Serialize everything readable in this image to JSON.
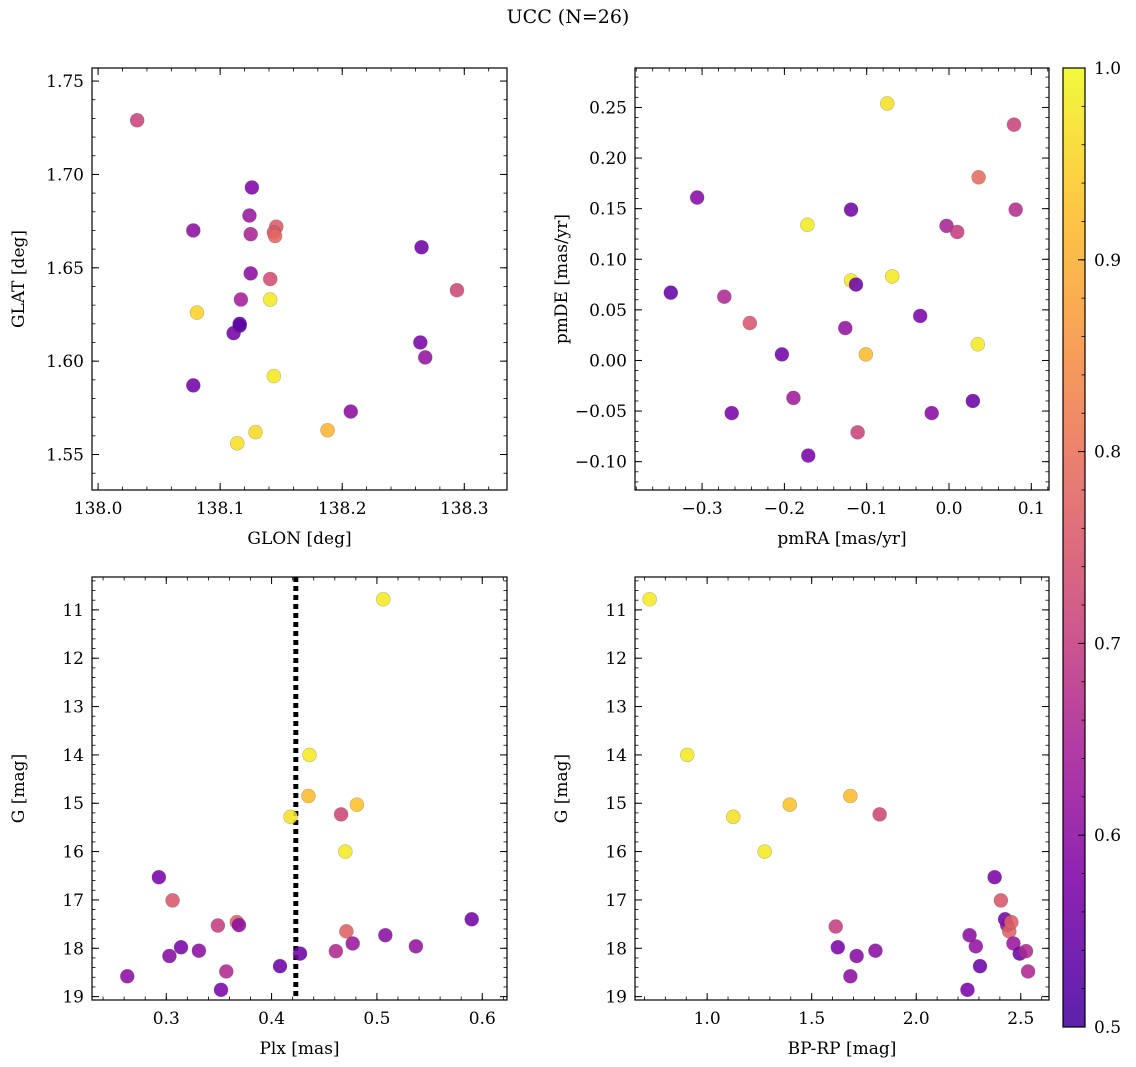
{
  "suptitle": "UCC (N=26)",
  "colorbar": {
    "colormap": "plasma",
    "range": [
      0.5,
      1.0
    ],
    "ticks": [
      "0.5",
      "0.6",
      "0.7",
      "0.8",
      "0.9",
      "1.0"
    ]
  },
  "chart_data": [
    {
      "type": "scatter",
      "title": "",
      "xlabel": "GLON [deg]",
      "ylabel": "GLAT [deg]",
      "xlim": [
        137.995,
        138.335
      ],
      "ylim": [
        1.531,
        1.757
      ],
      "xticks": [
        "138.0",
        "138.1",
        "138.2",
        "138.3"
      ],
      "yticks": [
        "1.55",
        "1.60",
        "1.65",
        "1.70",
        "1.75"
      ],
      "points": [
        {
          "x": 138.032,
          "y": 1.729,
          "c": 0.71
        },
        {
          "x": 138.078,
          "y": 1.67,
          "c": 0.6
        },
        {
          "x": 138.126,
          "y": 1.693,
          "c": 0.58
        },
        {
          "x": 138.124,
          "y": 1.678,
          "c": 0.62
        },
        {
          "x": 138.125,
          "y": 1.668,
          "c": 0.65
        },
        {
          "x": 138.146,
          "y": 1.672,
          "c": 0.76
        },
        {
          "x": 138.144,
          "y": 1.669,
          "c": 0.75
        },
        {
          "x": 138.145,
          "y": 1.667,
          "c": 0.78
        },
        {
          "x": 138.125,
          "y": 1.647,
          "c": 0.6
        },
        {
          "x": 138.141,
          "y": 1.644,
          "c": 0.73
        },
        {
          "x": 138.117,
          "y": 1.633,
          "c": 0.64
        },
        {
          "x": 138.141,
          "y": 1.633,
          "c": 0.98
        },
        {
          "x": 138.081,
          "y": 1.626,
          "c": 0.95
        },
        {
          "x": 138.116,
          "y": 1.619,
          "c": 0.52
        },
        {
          "x": 138.111,
          "y": 1.615,
          "c": 0.56
        },
        {
          "x": 138.078,
          "y": 1.587,
          "c": 0.56
        },
        {
          "x": 138.144,
          "y": 1.592,
          "c": 0.98
        },
        {
          "x": 138.129,
          "y": 1.562,
          "c": 0.96
        },
        {
          "x": 138.114,
          "y": 1.556,
          "c": 0.97
        },
        {
          "x": 138.188,
          "y": 1.563,
          "c": 0.91
        },
        {
          "x": 138.207,
          "y": 1.573,
          "c": 0.6
        },
        {
          "x": 138.265,
          "y": 1.661,
          "c": 0.55
        },
        {
          "x": 138.264,
          "y": 1.61,
          "c": 0.57
        },
        {
          "x": 138.268,
          "y": 1.602,
          "c": 0.61
        },
        {
          "x": 138.294,
          "y": 1.638,
          "c": 0.72
        },
        {
          "x": 138.116,
          "y": 1.62,
          "c": 0.53
        }
      ]
    },
    {
      "type": "scatter",
      "title": "",
      "xlabel": "pmRA [mas/yr]",
      "ylabel": "pmDE [mas/yr]",
      "xlim": [
        -0.3815,
        0.1215
      ],
      "ylim": [
        -0.128,
        0.289
      ],
      "xticks": [
        "−0.3",
        "−0.2",
        "−0.1",
        "0.0",
        "0.1"
      ],
      "yticks": [
        "−0.10",
        "−0.05",
        "0.00",
        "0.05",
        "0.10",
        "0.15",
        "0.20",
        "0.25"
      ],
      "points": [
        {
          "x": -0.075,
          "y": 0.254,
          "c": 0.97
        },
        {
          "x": 0.079,
          "y": 0.233,
          "c": 0.71
        },
        {
          "x": 0.036,
          "y": 0.181,
          "c": 0.79
        },
        {
          "x": -0.306,
          "y": 0.161,
          "c": 0.59
        },
        {
          "x": -0.119,
          "y": 0.149,
          "c": 0.56
        },
        {
          "x": 0.081,
          "y": 0.149,
          "c": 0.67
        },
        {
          "x": -0.172,
          "y": 0.134,
          "c": 0.98
        },
        {
          "x": -0.003,
          "y": 0.133,
          "c": 0.65
        },
        {
          "x": 0.01,
          "y": 0.127,
          "c": 0.7
        },
        {
          "x": -0.069,
          "y": 0.083,
          "c": 0.98
        },
        {
          "x": -0.119,
          "y": 0.079,
          "c": 0.98
        },
        {
          "x": -0.113,
          "y": 0.075,
          "c": 0.55
        },
        {
          "x": -0.338,
          "y": 0.067,
          "c": 0.54
        },
        {
          "x": -0.273,
          "y": 0.063,
          "c": 0.66
        },
        {
          "x": -0.242,
          "y": 0.037,
          "c": 0.75
        },
        {
          "x": -0.126,
          "y": 0.032,
          "c": 0.61
        },
        {
          "x": -0.035,
          "y": 0.044,
          "c": 0.57
        },
        {
          "x": -0.203,
          "y": 0.006,
          "c": 0.56
        },
        {
          "x": -0.101,
          "y": 0.006,
          "c": 0.92
        },
        {
          "x": 0.035,
          "y": 0.016,
          "c": 0.98
        },
        {
          "x": -0.189,
          "y": -0.037,
          "c": 0.63
        },
        {
          "x": -0.264,
          "y": -0.052,
          "c": 0.57
        },
        {
          "x": -0.021,
          "y": -0.052,
          "c": 0.59
        },
        {
          "x": 0.029,
          "y": -0.04,
          "c": 0.55
        },
        {
          "x": -0.111,
          "y": -0.071,
          "c": 0.71
        },
        {
          "x": -0.171,
          "y": -0.094,
          "c": 0.57
        }
      ]
    },
    {
      "type": "scatter",
      "title": "",
      "xlabel": "Plx [mas]",
      "ylabel": "G [mag]",
      "xlim": [
        0.2295,
        0.6235
      ],
      "ylim": [
        19.07,
        10.32
      ],
      "xticks": [
        "0.3",
        "0.4",
        "0.5",
        "0.6"
      ],
      "yticks": [
        "11",
        "12",
        "13",
        "14",
        "15",
        "16",
        "17",
        "18",
        "19"
      ],
      "vline": {
        "x": 0.423,
        "style": "dotted"
      },
      "points": [
        {
          "x": 0.506,
          "y": 10.78,
          "c": 0.98
        },
        {
          "x": 0.436,
          "y": 14.0,
          "c": 0.98
        },
        {
          "x": 0.435,
          "y": 14.85,
          "c": 0.92
        },
        {
          "x": 0.481,
          "y": 15.03,
          "c": 0.93
        },
        {
          "x": 0.418,
          "y": 15.28,
          "c": 0.97
        },
        {
          "x": 0.466,
          "y": 15.23,
          "c": 0.72
        },
        {
          "x": 0.47,
          "y": 16.0,
          "c": 0.98
        },
        {
          "x": 0.293,
          "y": 16.53,
          "c": 0.57
        },
        {
          "x": 0.306,
          "y": 17.01,
          "c": 0.75
        },
        {
          "x": 0.349,
          "y": 17.53,
          "c": 0.7
        },
        {
          "x": 0.367,
          "y": 17.46,
          "c": 0.77
        },
        {
          "x": 0.369,
          "y": 17.52,
          "c": 0.6
        },
        {
          "x": 0.471,
          "y": 17.65,
          "c": 0.77
        },
        {
          "x": 0.59,
          "y": 17.4,
          "c": 0.56
        },
        {
          "x": 0.508,
          "y": 17.73,
          "c": 0.6
        },
        {
          "x": 0.314,
          "y": 17.98,
          "c": 0.57
        },
        {
          "x": 0.303,
          "y": 18.16,
          "c": 0.59
        },
        {
          "x": 0.331,
          "y": 18.05,
          "c": 0.6
        },
        {
          "x": 0.427,
          "y": 18.11,
          "c": 0.55
        },
        {
          "x": 0.461,
          "y": 18.06,
          "c": 0.66
        },
        {
          "x": 0.477,
          "y": 17.9,
          "c": 0.62
        },
        {
          "x": 0.537,
          "y": 17.96,
          "c": 0.61
        },
        {
          "x": 0.408,
          "y": 18.37,
          "c": 0.55
        },
        {
          "x": 0.357,
          "y": 18.48,
          "c": 0.66
        },
        {
          "x": 0.263,
          "y": 18.58,
          "c": 0.6
        },
        {
          "x": 0.352,
          "y": 18.86,
          "c": 0.57
        }
      ]
    },
    {
      "type": "scatter",
      "title": "",
      "xlabel": "BP-RP [mag]",
      "ylabel": "G [mag]",
      "xlim": [
        0.655,
        2.635
      ],
      "ylim": [
        19.07,
        10.32
      ],
      "xticks": [
        "1.0",
        "1.5",
        "2.0",
        "2.5"
      ],
      "yticks": [
        "11",
        "12",
        "13",
        "14",
        "15",
        "16",
        "17",
        "18",
        "19"
      ],
      "points": [
        {
          "x": 0.725,
          "y": 10.78,
          "c": 0.98
        },
        {
          "x": 0.905,
          "y": 14.0,
          "c": 0.98
        },
        {
          "x": 1.125,
          "y": 15.28,
          "c": 0.97
        },
        {
          "x": 1.275,
          "y": 16.0,
          "c": 0.98
        },
        {
          "x": 1.395,
          "y": 15.03,
          "c": 0.93
        },
        {
          "x": 1.685,
          "y": 14.85,
          "c": 0.92
        },
        {
          "x": 1.825,
          "y": 15.23,
          "c": 0.72
        },
        {
          "x": 1.615,
          "y": 17.55,
          "c": 0.7
        },
        {
          "x": 1.625,
          "y": 17.98,
          "c": 0.57
        },
        {
          "x": 1.685,
          "y": 18.58,
          "c": 0.6
        },
        {
          "x": 1.715,
          "y": 18.16,
          "c": 0.59
        },
        {
          "x": 1.805,
          "y": 18.05,
          "c": 0.6
        },
        {
          "x": 2.245,
          "y": 18.86,
          "c": 0.57
        },
        {
          "x": 2.255,
          "y": 17.73,
          "c": 0.6
        },
        {
          "x": 2.285,
          "y": 17.96,
          "c": 0.61
        },
        {
          "x": 2.305,
          "y": 18.37,
          "c": 0.55
        },
        {
          "x": 2.375,
          "y": 16.53,
          "c": 0.57
        },
        {
          "x": 2.405,
          "y": 17.01,
          "c": 0.75
        },
        {
          "x": 2.425,
          "y": 17.4,
          "c": 0.56
        },
        {
          "x": 2.435,
          "y": 17.52,
          "c": 0.6
        },
        {
          "x": 2.445,
          "y": 17.65,
          "c": 0.77
        },
        {
          "x": 2.465,
          "y": 17.9,
          "c": 0.62
        },
        {
          "x": 2.495,
          "y": 18.11,
          "c": 0.55
        },
        {
          "x": 2.525,
          "y": 18.06,
          "c": 0.66
        },
        {
          "x": 2.535,
          "y": 18.48,
          "c": 0.66
        },
        {
          "x": 2.455,
          "y": 17.46,
          "c": 0.77
        }
      ]
    }
  ]
}
